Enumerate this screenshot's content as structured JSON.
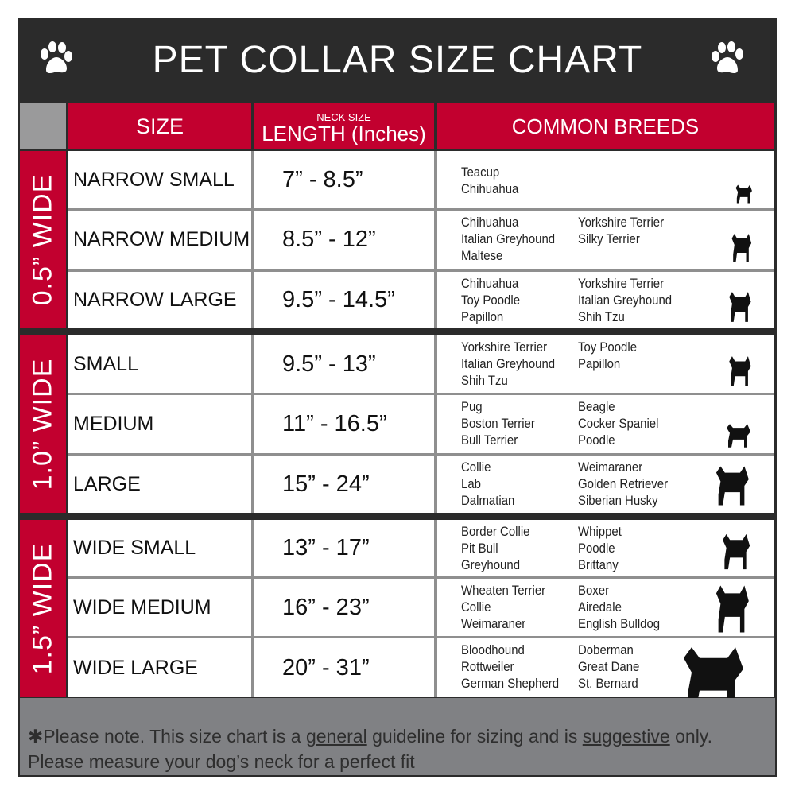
{
  "title": "PET COLLAR SIZE CHART",
  "headers": {
    "size": "SIZE",
    "length_small": "NECK SIZE",
    "length": "LENGTH (Inches)",
    "breeds": "COMMON BREEDS"
  },
  "groups": [
    "0.5” WIDE",
    "1.0” WIDE",
    "1.5” WIDE"
  ],
  "rows": [
    {
      "size": "NARROW SMALL",
      "length": "7” - 8.5”",
      "col1": [
        "Teacup",
        "Chihuahua"
      ],
      "col2": []
    },
    {
      "size": "NARROW MEDIUM",
      "length": "8.5” - 12”",
      "col1": [
        "Chihuahua",
        "Italian Greyhound",
        "Maltese"
      ],
      "col2": [
        "Yorkshire Terrier",
        "Silky Terrier"
      ]
    },
    {
      "size": "NARROW LARGE",
      "length": "9.5” - 14.5”",
      "col1": [
        "Chihuahua",
        "Toy Poodle",
        "Papillon"
      ],
      "col2": [
        "Yorkshire Terrier",
        "Italian Greyhound",
        "Shih Tzu"
      ]
    },
    {
      "size": "SMALL",
      "length": "9.5” - 13”",
      "col1": [
        "Yorkshire Terrier",
        "Italian Greyhound",
        "Shih Tzu"
      ],
      "col2": [
        "Toy Poodle",
        "Papillon"
      ]
    },
    {
      "size": "MEDIUM",
      "length": "11” - 16.5”",
      "col1": [
        "Pug",
        "Boston Terrier",
        "Bull Terrier"
      ],
      "col2": [
        "Beagle",
        "Cocker Spaniel",
        "Poodle"
      ]
    },
    {
      "size": "LARGE",
      "length": "15” - 24”",
      "col1": [
        "Collie",
        "Lab",
        "Dalmatian"
      ],
      "col2": [
        "Weimaraner",
        "Golden Retriever",
        "Siberian Husky"
      ]
    },
    {
      "size": "WIDE SMALL",
      "length": "13” - 17”",
      "col1": [
        "Border Collie",
        "Pit Bull",
        "Greyhound"
      ],
      "col2": [
        "Whippet",
        "Poodle",
        "Brittany"
      ]
    },
    {
      "size": "WIDE MEDIUM",
      "length": "16” - 23”",
      "col1": [
        "Wheaten Terrier",
        "Collie",
        "Weimaraner"
      ],
      "col2": [
        "Boxer",
        "Airedale",
        "English Bulldog"
      ]
    },
    {
      "size": "WIDE LARGE",
      "length": "20” - 31”",
      "col1": [
        "Bloodhound",
        "Rottweiler",
        "German Shepherd"
      ],
      "col2": [
        "Doberman",
        "Great Dane",
        "St. Bernard"
      ]
    }
  ],
  "footer": {
    "pre": "✱Please note. This size chart is a ",
    "u1": "general",
    "mid": " guideline for sizing and is ",
    "u2": "suggestive",
    "post": " only.",
    "line2": "Please measure your dog’s neck for a perfect fit"
  },
  "colors": {
    "header_red": "#c2002f",
    "dark": "#2b2b2b",
    "footer_grey": "#808184"
  },
  "icons": [
    "paw-icon",
    "dog-silhouette-icon"
  ]
}
